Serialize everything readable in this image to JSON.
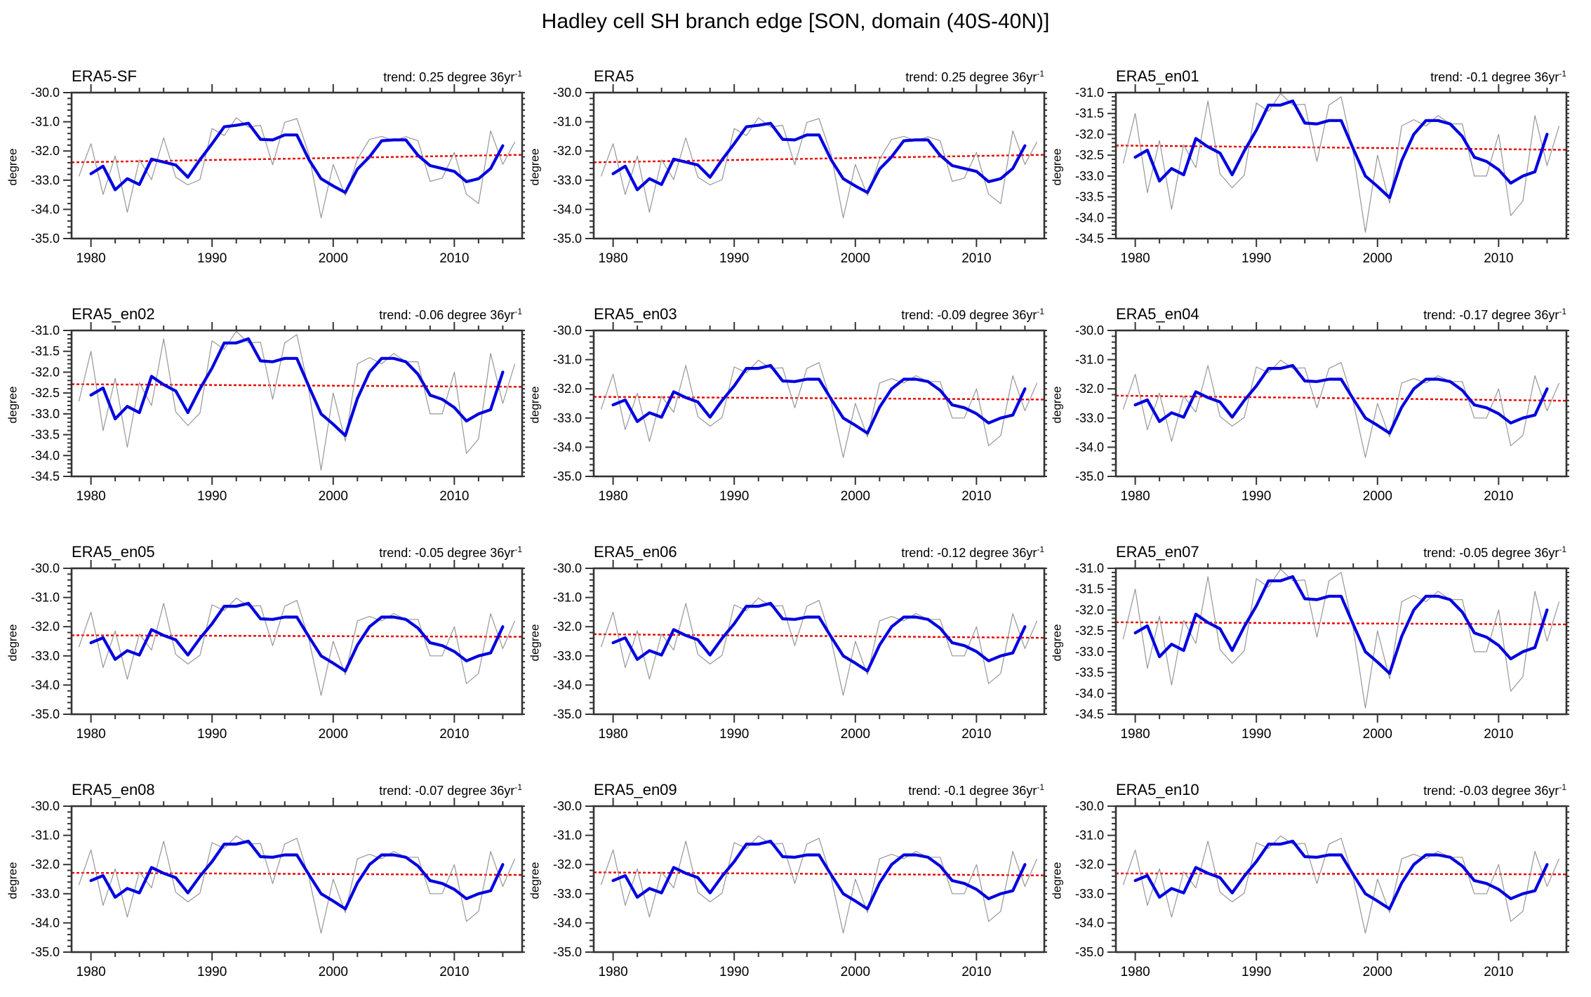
{
  "chart_data": {
    "type": "line",
    "title": "Hadley cell SH branch edge [SON, domain (40S-40N)]",
    "ylabel": "degree",
    "x_axis": {
      "domain": [
        1978.4,
        2015.6
      ],
      "major_ticks": [
        1980,
        1990,
        2000,
        2010
      ],
      "minor_step_years": 2,
      "annual_start_year": 1979,
      "annual_end_year": 2015,
      "smoothed_start_year": 1980,
      "smoothed_end_year": 2014
    },
    "series_library": {
      "era5": {
        "annual": [
          -32.87,
          -31.75,
          -33.49,
          -32.17,
          -34.1,
          -32.3,
          -32.98,
          -31.55,
          -32.9,
          -33.16,
          -32.98,
          -31.23,
          -31.47,
          -30.86,
          -31.18,
          -31.12,
          -32.47,
          -31.02,
          -30.89,
          -32.12,
          -34.29,
          -32.46,
          -33.53,
          -32.28,
          -31.6,
          -31.5,
          -31.65,
          -31.51,
          -31.65,
          -33.04,
          -32.93,
          -32.05,
          -33.48,
          -33.8,
          -31.31,
          -32.46,
          -31.69
        ],
        "smoothed": [
          -32.78,
          -32.52,
          -33.33,
          -32.95,
          -33.15,
          -32.28,
          -32.38,
          -32.48,
          -32.9,
          -32.3,
          -31.75,
          -31.17,
          -31.12,
          -31.05,
          -31.6,
          -31.62,
          -31.45,
          -31.45,
          -32.3,
          -32.95,
          -33.2,
          -33.42,
          -32.62,
          -32.2,
          -31.65,
          -31.62,
          -31.62,
          -32.15,
          -32.5,
          -32.6,
          -32.7,
          -33.05,
          -32.95,
          -32.6,
          -31.82
        ],
        "trend_mid_value": -32.26
      },
      "ensemble": {
        "annual": [
          -32.7,
          -31.5,
          -33.4,
          -32.15,
          -33.8,
          -32.25,
          -32.8,
          -31.2,
          -32.95,
          -33.28,
          -32.98,
          -31.25,
          -31.45,
          -31.02,
          -31.3,
          -31.28,
          -32.65,
          -31.3,
          -31.1,
          -32.45,
          -34.35,
          -32.5,
          -33.65,
          -31.8,
          -31.65,
          -31.8,
          -31.55,
          -31.75,
          -31.75,
          -33.0,
          -33.0,
          -32.0,
          -33.95,
          -33.6,
          -31.55,
          -32.75,
          -31.8
        ],
        "smoothed": [
          -32.55,
          -32.38,
          -33.12,
          -32.82,
          -32.97,
          -32.1,
          -32.3,
          -32.45,
          -32.97,
          -32.4,
          -31.9,
          -31.3,
          -31.3,
          -31.2,
          -31.73,
          -31.75,
          -31.67,
          -31.67,
          -32.35,
          -33.0,
          -33.25,
          -33.52,
          -32.63,
          -32.0,
          -31.67,
          -31.67,
          -31.75,
          -32.05,
          -32.55,
          -32.65,
          -32.85,
          -33.17,
          -33.0,
          -32.9,
          -32.0
        ],
        "trend_mid_value": -32.32
      }
    },
    "panels": [
      {
        "title": "ERA5-SF",
        "trend_label": "trend: 0.25 degree 36yr",
        "trend_sup": "-1",
        "trend_per_36yr": 0.25,
        "dataset": "era5",
        "ylim": [
          -35.0,
          -30.0
        ],
        "ytick_step": 1.0,
        "ytick_minor_step": 0.2
      },
      {
        "title": "ERA5",
        "trend_label": "trend: 0.25 degree 36yr",
        "trend_sup": "-1",
        "trend_per_36yr": 0.25,
        "dataset": "era5",
        "ylim": [
          -35.0,
          -30.0
        ],
        "ytick_step": 1.0,
        "ytick_minor_step": 0.2
      },
      {
        "title": "ERA5_en01",
        "trend_label": "trend: -0.1 degree 36yr",
        "trend_sup": "-1",
        "trend_per_36yr": -0.1,
        "dataset": "ensemble",
        "ylim": [
          -34.5,
          -31.0
        ],
        "ytick_step": 0.5,
        "ytick_minor_step": 0.1
      },
      {
        "title": "ERA5_en02",
        "trend_label": "trend: -0.06 degree 36yr",
        "trend_sup": "-1",
        "trend_per_36yr": -0.06,
        "dataset": "ensemble",
        "ylim": [
          -34.5,
          -31.0
        ],
        "ytick_step": 0.5,
        "ytick_minor_step": 0.1
      },
      {
        "title": "ERA5_en03",
        "trend_label": "trend: -0.09 degree 36yr",
        "trend_sup": "-1",
        "trend_per_36yr": -0.09,
        "dataset": "ensemble",
        "ylim": [
          -35.0,
          -30.0
        ],
        "ytick_step": 1.0,
        "ytick_minor_step": 0.2
      },
      {
        "title": "ERA5_en04",
        "trend_label": "trend: -0.17 degree 36yr",
        "trend_sup": "-1",
        "trend_per_36yr": -0.17,
        "dataset": "ensemble",
        "ylim": [
          -35.0,
          -30.0
        ],
        "ytick_step": 1.0,
        "ytick_minor_step": 0.2
      },
      {
        "title": "ERA5_en05",
        "trend_label": "trend: -0.05 degree 36yr",
        "trend_sup": "-1",
        "trend_per_36yr": -0.05,
        "dataset": "ensemble",
        "ylim": [
          -35.0,
          -30.0
        ],
        "ytick_step": 1.0,
        "ytick_minor_step": 0.2
      },
      {
        "title": "ERA5_en06",
        "trend_label": "trend: -0.12 degree 36yr",
        "trend_sup": "-1",
        "trend_per_36yr": -0.12,
        "dataset": "ensemble",
        "ylim": [
          -35.0,
          -30.0
        ],
        "ytick_step": 1.0,
        "ytick_minor_step": 0.2
      },
      {
        "title": "ERA5_en07",
        "trend_label": "trend: -0.05 degree 36yr",
        "trend_sup": "-1",
        "trend_per_36yr": -0.05,
        "dataset": "ensemble",
        "ylim": [
          -34.5,
          -31.0
        ],
        "ytick_step": 0.5,
        "ytick_minor_step": 0.1
      },
      {
        "title": "ERA5_en08",
        "trend_label": "trend: -0.07 degree 36yr",
        "trend_sup": "-1",
        "trend_per_36yr": -0.07,
        "dataset": "ensemble",
        "ylim": [
          -35.0,
          -30.0
        ],
        "ytick_step": 1.0,
        "ytick_minor_step": 0.2
      },
      {
        "title": "ERA5_en09",
        "trend_label": "trend: -0.1 degree 36yr",
        "trend_sup": "-1",
        "trend_per_36yr": -0.1,
        "dataset": "ensemble",
        "ylim": [
          -35.0,
          -30.0
        ],
        "ytick_step": 1.0,
        "ytick_minor_step": 0.2
      },
      {
        "title": "ERA5_en10",
        "trend_label": "trend: -0.03 degree 36yr",
        "trend_sup": "-1",
        "trend_per_36yr": -0.03,
        "dataset": "ensemble",
        "ylim": [
          -35.0,
          -30.0
        ],
        "ytick_step": 1.0,
        "ytick_minor_step": 0.2
      }
    ],
    "style": {
      "annual_color": "#969696",
      "smoothed_color": "#0000e0",
      "trend_color": "#ee0000",
      "axis_color": "#333333"
    }
  }
}
